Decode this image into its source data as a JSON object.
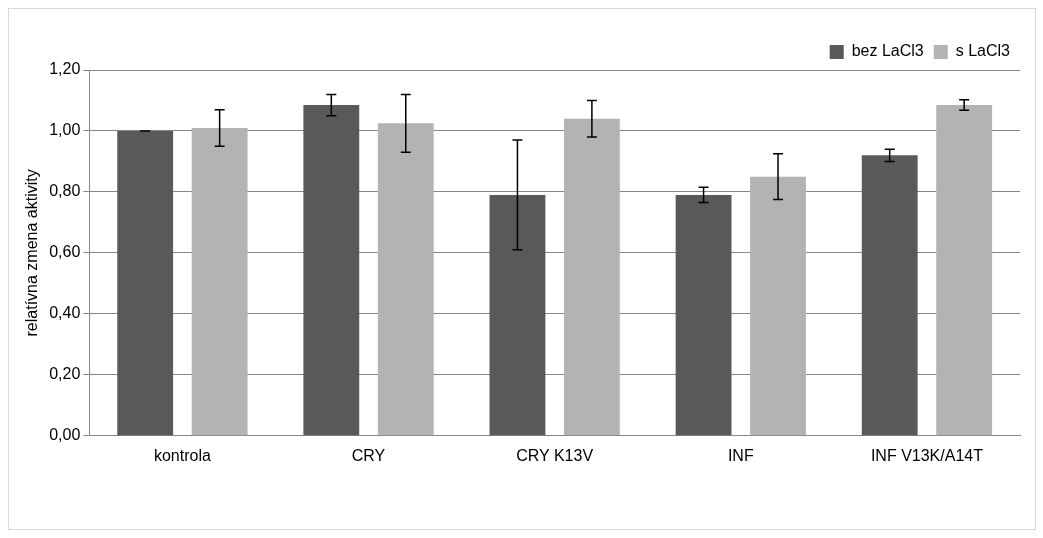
{
  "chart_data": {
    "type": "bar",
    "ylabel": "relatívna zmena aktivity",
    "categories": [
      "kontrola",
      "CRY",
      "CRY K13V",
      "INF",
      "INF V13K/A14T"
    ],
    "series": [
      {
        "name": "bez LaCl3",
        "color": "#595959",
        "values": [
          1.0,
          1.085,
          0.79,
          0.79,
          0.92
        ],
        "errors": [
          0,
          0.035,
          0.18,
          0.025,
          0.02
        ]
      },
      {
        "name": "s LaCl3",
        "color": "#b3b3b3",
        "values": [
          1.01,
          1.025,
          1.04,
          0.85,
          1.085
        ],
        "errors": [
          0.06,
          0.095,
          0.06,
          0.075,
          0.017
        ]
      }
    ],
    "ylim": [
      0,
      1.2
    ],
    "yticks": [
      {
        "value": 0,
        "label": "0,00"
      },
      {
        "value": 0.2,
        "label": "0,20"
      },
      {
        "value": 0.4,
        "label": "0,40"
      },
      {
        "value": 0.6,
        "label": "0,60"
      },
      {
        "value": 0.8,
        "label": "0,80"
      },
      {
        "value": 1.0,
        "label": "1,00"
      },
      {
        "value": 1.2,
        "label": "1,20"
      }
    ],
    "grid": "y",
    "legend": "top right"
  }
}
